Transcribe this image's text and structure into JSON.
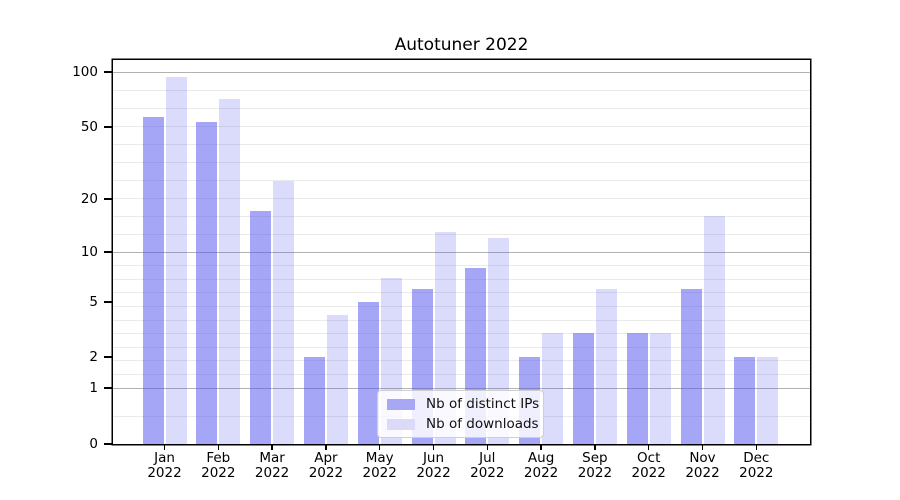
{
  "title": "Autotuner 2022",
  "legend": {
    "items": [
      {
        "label": "Nb of distinct IPs"
      },
      {
        "label": "Nb of downloads"
      }
    ]
  },
  "y_axis_tick_labels": [
    "100",
    "50",
    "20",
    "10",
    "5",
    "2",
    "1",
    "0"
  ],
  "x_axis_tick_labels": [
    "Jan 2022",
    "Feb 2022",
    "Mar 2022",
    "Apr 2022",
    "May 2022",
    "Jun 2022",
    "Jul 2022",
    "Aug 2022",
    "Sep 2022",
    "Oct 2022",
    "Nov 2022",
    "Dec 2022"
  ],
  "colors": {
    "series_bars": [
      "rgba(85,85,240,0.52)",
      "rgba(85,85,240,0.21)"
    ],
    "legend_swatches": [
      "#a7a7f4",
      "#dbdbf9"
    ],
    "grid_major": "#b2b2b2",
    "grid_minor": "#eaeaea",
    "spine": "#000000",
    "text": "#000000"
  },
  "chart_data": {
    "type": "bar",
    "title": "Autotuner 2022",
    "categories": [
      "Jan 2022",
      "Feb 2022",
      "Mar 2022",
      "Apr 2022",
      "May 2022",
      "Jun 2022",
      "Jul 2022",
      "Aug 2022",
      "Sep 2022",
      "Oct 2022",
      "Nov 2022",
      "Dec 2022"
    ],
    "series": [
      {
        "name": "Nb of distinct IPs",
        "values": [
          57,
          53,
          17,
          2,
          5,
          6,
          8,
          2,
          3,
          3,
          6,
          2
        ]
      },
      {
        "name": "Nb of downloads",
        "values": [
          94,
          71,
          25,
          4,
          7,
          13,
          12,
          3,
          6,
          3,
          16,
          2
        ]
      }
    ],
    "xlabel": "",
    "ylabel": "",
    "yscale": "symlog",
    "yticks": [
      0,
      1,
      2,
      5,
      10,
      20,
      50,
      100
    ],
    "ylim": [
      0,
      130
    ],
    "grid": true,
    "legend_position": "lower center"
  }
}
